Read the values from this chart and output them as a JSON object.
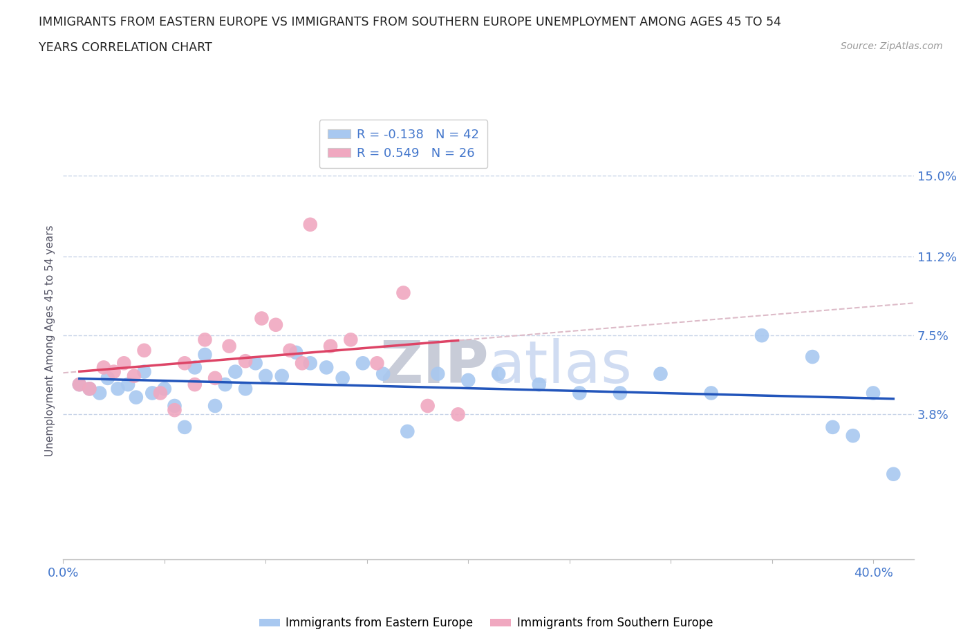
{
  "title_line1": "IMMIGRANTS FROM EASTERN EUROPE VS IMMIGRANTS FROM SOUTHERN EUROPE UNEMPLOYMENT AMONG AGES 45 TO 54",
  "title_line2": "YEARS CORRELATION CHART",
  "source": "Source: ZipAtlas.com",
  "ylabel_label": "Unemployment Among Ages 45 to 54 years",
  "legend_label1": "Immigrants from Eastern Europe",
  "legend_label2": "Immigrants from Southern Europe",
  "R1": "-0.138",
  "N1": "42",
  "R2": "0.549",
  "N2": "26",
  "color_blue": "#a8c8f0",
  "color_pink": "#f0a8c0",
  "line_blue": "#2255bb",
  "line_pink": "#dd4466",
  "line_dashed_color": "#ddbbc8",
  "grid_color": "#c8d4e8",
  "title_color": "#222222",
  "axis_label_color": "#555566",
  "tick_color": "#4477cc",
  "source_color": "#999999",
  "watermark_color": "#d0d4e0",
  "xlim": [
    0.0,
    0.42
  ],
  "ylim": [
    -0.03,
    0.175
  ],
  "yticks": [
    0.038,
    0.075,
    0.112,
    0.15
  ],
  "ytick_labels": [
    "3.8%",
    "7.5%",
    "11.2%",
    "15.0%"
  ],
  "xtick_positions": [
    0.0,
    0.05,
    0.1,
    0.15,
    0.2,
    0.25,
    0.3,
    0.35,
    0.4
  ],
  "xtick_labels_shown": [
    "0.0%",
    "",
    "",
    "",
    "",
    "",
    "",
    "",
    "40.0%"
  ],
  "blue_x": [
    0.008,
    0.013,
    0.018,
    0.022,
    0.027,
    0.032,
    0.036,
    0.04,
    0.044,
    0.05,
    0.055,
    0.06,
    0.065,
    0.07,
    0.075,
    0.08,
    0.085,
    0.09,
    0.095,
    0.1,
    0.108,
    0.115,
    0.122,
    0.13,
    0.138,
    0.148,
    0.158,
    0.17,
    0.185,
    0.2,
    0.215,
    0.235,
    0.255,
    0.275,
    0.295,
    0.32,
    0.345,
    0.37,
    0.38,
    0.39,
    0.4,
    0.41
  ],
  "blue_y": [
    0.052,
    0.05,
    0.048,
    0.055,
    0.05,
    0.052,
    0.046,
    0.058,
    0.048,
    0.05,
    0.042,
    0.032,
    0.06,
    0.066,
    0.042,
    0.052,
    0.058,
    0.05,
    0.062,
    0.056,
    0.056,
    0.067,
    0.062,
    0.06,
    0.055,
    0.062,
    0.057,
    0.03,
    0.057,
    0.054,
    0.057,
    0.052,
    0.048,
    0.048,
    0.057,
    0.048,
    0.075,
    0.065,
    0.032,
    0.028,
    0.048,
    0.01
  ],
  "pink_x": [
    0.008,
    0.013,
    0.02,
    0.025,
    0.03,
    0.035,
    0.04,
    0.048,
    0.055,
    0.06,
    0.065,
    0.07,
    0.075,
    0.082,
    0.09,
    0.098,
    0.105,
    0.112,
    0.118,
    0.122,
    0.132,
    0.142,
    0.155,
    0.168,
    0.18,
    0.195
  ],
  "pink_y": [
    0.052,
    0.05,
    0.06,
    0.058,
    0.062,
    0.056,
    0.068,
    0.048,
    0.04,
    0.062,
    0.052,
    0.073,
    0.055,
    0.07,
    0.063,
    0.083,
    0.08,
    0.068,
    0.062,
    0.127,
    0.07,
    0.073,
    0.062,
    0.095,
    0.042,
    0.038
  ]
}
